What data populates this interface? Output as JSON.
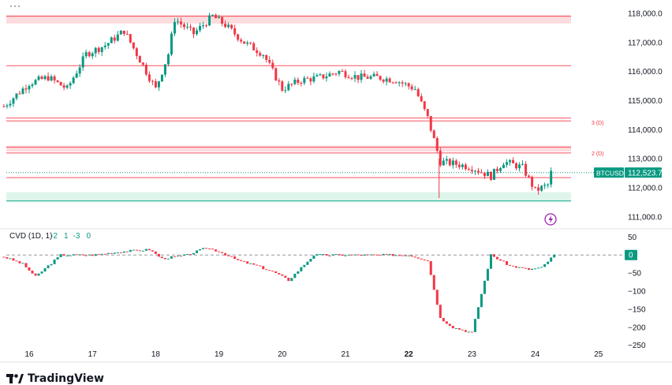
{
  "header": {
    "menu_dots": "···"
  },
  "price_panel": {
    "ticks": [
      "118,000.0",
      "117,000.0",
      "116,000.0",
      "115,000.0",
      "114,000.0",
      "113,000.0",
      "112,000.0",
      "111,000.0"
    ],
    "tick_values": [
      118000,
      117000,
      116000,
      115000,
      114000,
      113000,
      112000,
      111000
    ],
    "symbol": "BTCUSD",
    "last_price": "112,523.7",
    "last_price_value": 112523.7,
    "annotations": [
      {
        "label": "3 (D)",
        "value": 114250
      },
      {
        "label": "2 (D)",
        "value": 113200
      }
    ],
    "colors": {
      "up": "#089981",
      "down": "#f23645",
      "price_tag": "#089981",
      "zone_red": "#fbd0d3",
      "zone_green": "#d1f2e4"
    }
  },
  "cvd_panel": {
    "title": "CVD (1D, 1)",
    "values_text": [
      "-2",
      "1",
      "-3",
      "0"
    ],
    "ticks": [
      "50",
      "0",
      "−50",
      "−100",
      "−150",
      "−200",
      "−250"
    ],
    "tick_values": [
      50,
      0,
      -50,
      -100,
      -150,
      -200,
      -250
    ],
    "current_value": "0"
  },
  "x_axis": {
    "labels": [
      "16",
      "17",
      "18",
      "19",
      "20",
      "21",
      "22",
      "23",
      "24",
      "25"
    ],
    "bold_label": "22"
  },
  "chart_data": {
    "type": "candlestick",
    "symbol": "BTCUSD",
    "x_labels": [
      "16",
      "17",
      "18",
      "19",
      "20",
      "21",
      "22",
      "23",
      "24",
      "25"
    ],
    "price_ylim": [
      110700,
      118350
    ],
    "price_series": [
      {
        "day": 15.6,
        "price": 114800
      },
      {
        "day": 15.8,
        "price": 115200
      },
      {
        "day": 16.0,
        "price": 115600
      },
      {
        "day": 16.3,
        "price": 115800
      },
      {
        "day": 16.6,
        "price": 115400
      },
      {
        "day": 16.9,
        "price": 116600
      },
      {
        "day": 17.2,
        "price": 116900
      },
      {
        "day": 17.5,
        "price": 117400
      },
      {
        "day": 17.8,
        "price": 116200
      },
      {
        "day": 18.0,
        "price": 115400
      },
      {
        "day": 18.2,
        "price": 116600
      },
      {
        "day": 18.3,
        "price": 117800
      },
      {
        "day": 18.6,
        "price": 117300
      },
      {
        "day": 18.9,
        "price": 117900
      },
      {
        "day": 19.1,
        "price": 117600
      },
      {
        "day": 19.4,
        "price": 117000
      },
      {
        "day": 19.7,
        "price": 116600
      },
      {
        "day": 20.0,
        "price": 115400
      },
      {
        "day": 20.3,
        "price": 115700
      },
      {
        "day": 20.6,
        "price": 115800
      },
      {
        "day": 20.9,
        "price": 116000
      },
      {
        "day": 21.2,
        "price": 115800
      },
      {
        "day": 21.5,
        "price": 115800
      },
      {
        "day": 21.8,
        "price": 115700
      },
      {
        "day": 22.1,
        "price": 115400
      },
      {
        "day": 22.3,
        "price": 114400
      },
      {
        "day": 22.5,
        "price": 112900
      },
      {
        "day": 22.8,
        "price": 112800
      },
      {
        "day": 23.0,
        "price": 112700
      },
      {
        "day": 23.3,
        "price": 112400
      },
      {
        "day": 23.5,
        "price": 112900
      },
      {
        "day": 23.8,
        "price": 112700
      },
      {
        "day": 24.0,
        "price": 111900
      },
      {
        "day": 24.2,
        "price": 112100
      },
      {
        "day": 24.25,
        "price": 112520
      }
    ],
    "horizontal_levels": [
      117900,
      116200,
      114400,
      114300,
      113400,
      113200,
      112350,
      111550
    ],
    "zones": [
      {
        "from": 117650,
        "to": 117950,
        "color": "red"
      },
      {
        "from": 113250,
        "to": 113450,
        "color": "red"
      },
      {
        "from": 111500,
        "to": 111850,
        "color": "green"
      }
    ],
    "cvd_ylim": [
      -255,
      55
    ],
    "cvd_series": [
      {
        "day": 15.6,
        "value": -5
      },
      {
        "day": 15.9,
        "value": -25
      },
      {
        "day": 16.1,
        "value": -60
      },
      {
        "day": 16.5,
        "value": 0
      },
      {
        "day": 17.0,
        "value": 0
      },
      {
        "day": 17.5,
        "value": 10
      },
      {
        "day": 17.9,
        "value": 15
      },
      {
        "day": 18.1,
        "value": -10
      },
      {
        "day": 18.5,
        "value": 0
      },
      {
        "day": 18.8,
        "value": 20
      },
      {
        "day": 19.0,
        "value": 10
      },
      {
        "day": 19.3,
        "value": -15
      },
      {
        "day": 19.6,
        "value": -30
      },
      {
        "day": 19.9,
        "value": -50
      },
      {
        "day": 20.1,
        "value": -70
      },
      {
        "day": 20.5,
        "value": 0
      },
      {
        "day": 21.0,
        "value": 0
      },
      {
        "day": 21.5,
        "value": 0
      },
      {
        "day": 22.0,
        "value": 0
      },
      {
        "day": 22.3,
        "value": -15
      },
      {
        "day": 22.5,
        "value": -175
      },
      {
        "day": 22.7,
        "value": -200
      },
      {
        "day": 23.0,
        "value": -215
      },
      {
        "day": 23.3,
        "value": 0
      },
      {
        "day": 23.6,
        "value": -30
      },
      {
        "day": 23.9,
        "value": -40
      },
      {
        "day": 24.1,
        "value": -35
      },
      {
        "day": 24.3,
        "value": 0
      }
    ]
  }
}
